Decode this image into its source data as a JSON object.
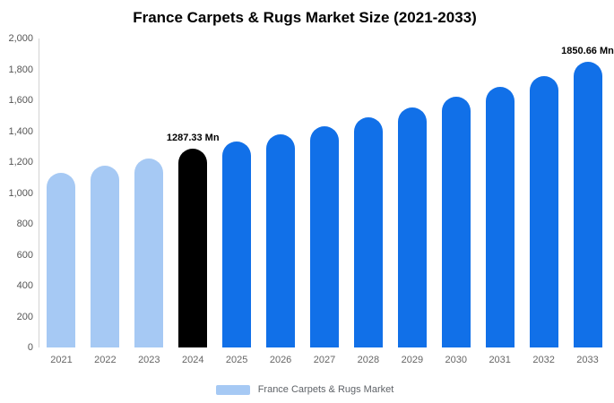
{
  "title": "France Carpets & Rugs Market Size (2021-2033)",
  "legend": {
    "label": "France Carpets & Rugs Market",
    "swatch_color": "#A6C9F4"
  },
  "colors": {
    "light_blue": "#A6C9F4",
    "primary_blue": "#1170E8",
    "highlight_black": "#000000",
    "axis_line": "#d3d3d3",
    "tick_text": "#555555"
  },
  "chart_data": {
    "type": "bar",
    "title": "France Carpets & Rugs Market Size (2021-2033)",
    "unit": "Mn",
    "categories": [
      "2021",
      "2022",
      "2023",
      "2024",
      "2025",
      "2026",
      "2027",
      "2028",
      "2029",
      "2030",
      "2031",
      "2032",
      "2033"
    ],
    "values": [
      1130,
      1177,
      1223,
      1287.33,
      1333,
      1382,
      1432,
      1490,
      1554,
      1623,
      1687,
      1757,
      1850.66
    ],
    "bar_colors": [
      "#A6C9F4",
      "#A6C9F4",
      "#A6C9F4",
      "#000000",
      "#1170E8",
      "#1170E8",
      "#1170E8",
      "#1170E8",
      "#1170E8",
      "#1170E8",
      "#1170E8",
      "#1170E8",
      "#1170E8"
    ],
    "ylim": [
      0,
      2000
    ],
    "yticks": [
      0,
      200,
      400,
      600,
      800,
      1000,
      1200,
      1400,
      1600,
      1800,
      2000
    ],
    "grid": false,
    "legend_position": "bottom",
    "annotations": [
      {
        "category": "2024",
        "text": "1287.33 Mn"
      },
      {
        "category": "2033",
        "text": "1850.66 Mn"
      }
    ]
  }
}
